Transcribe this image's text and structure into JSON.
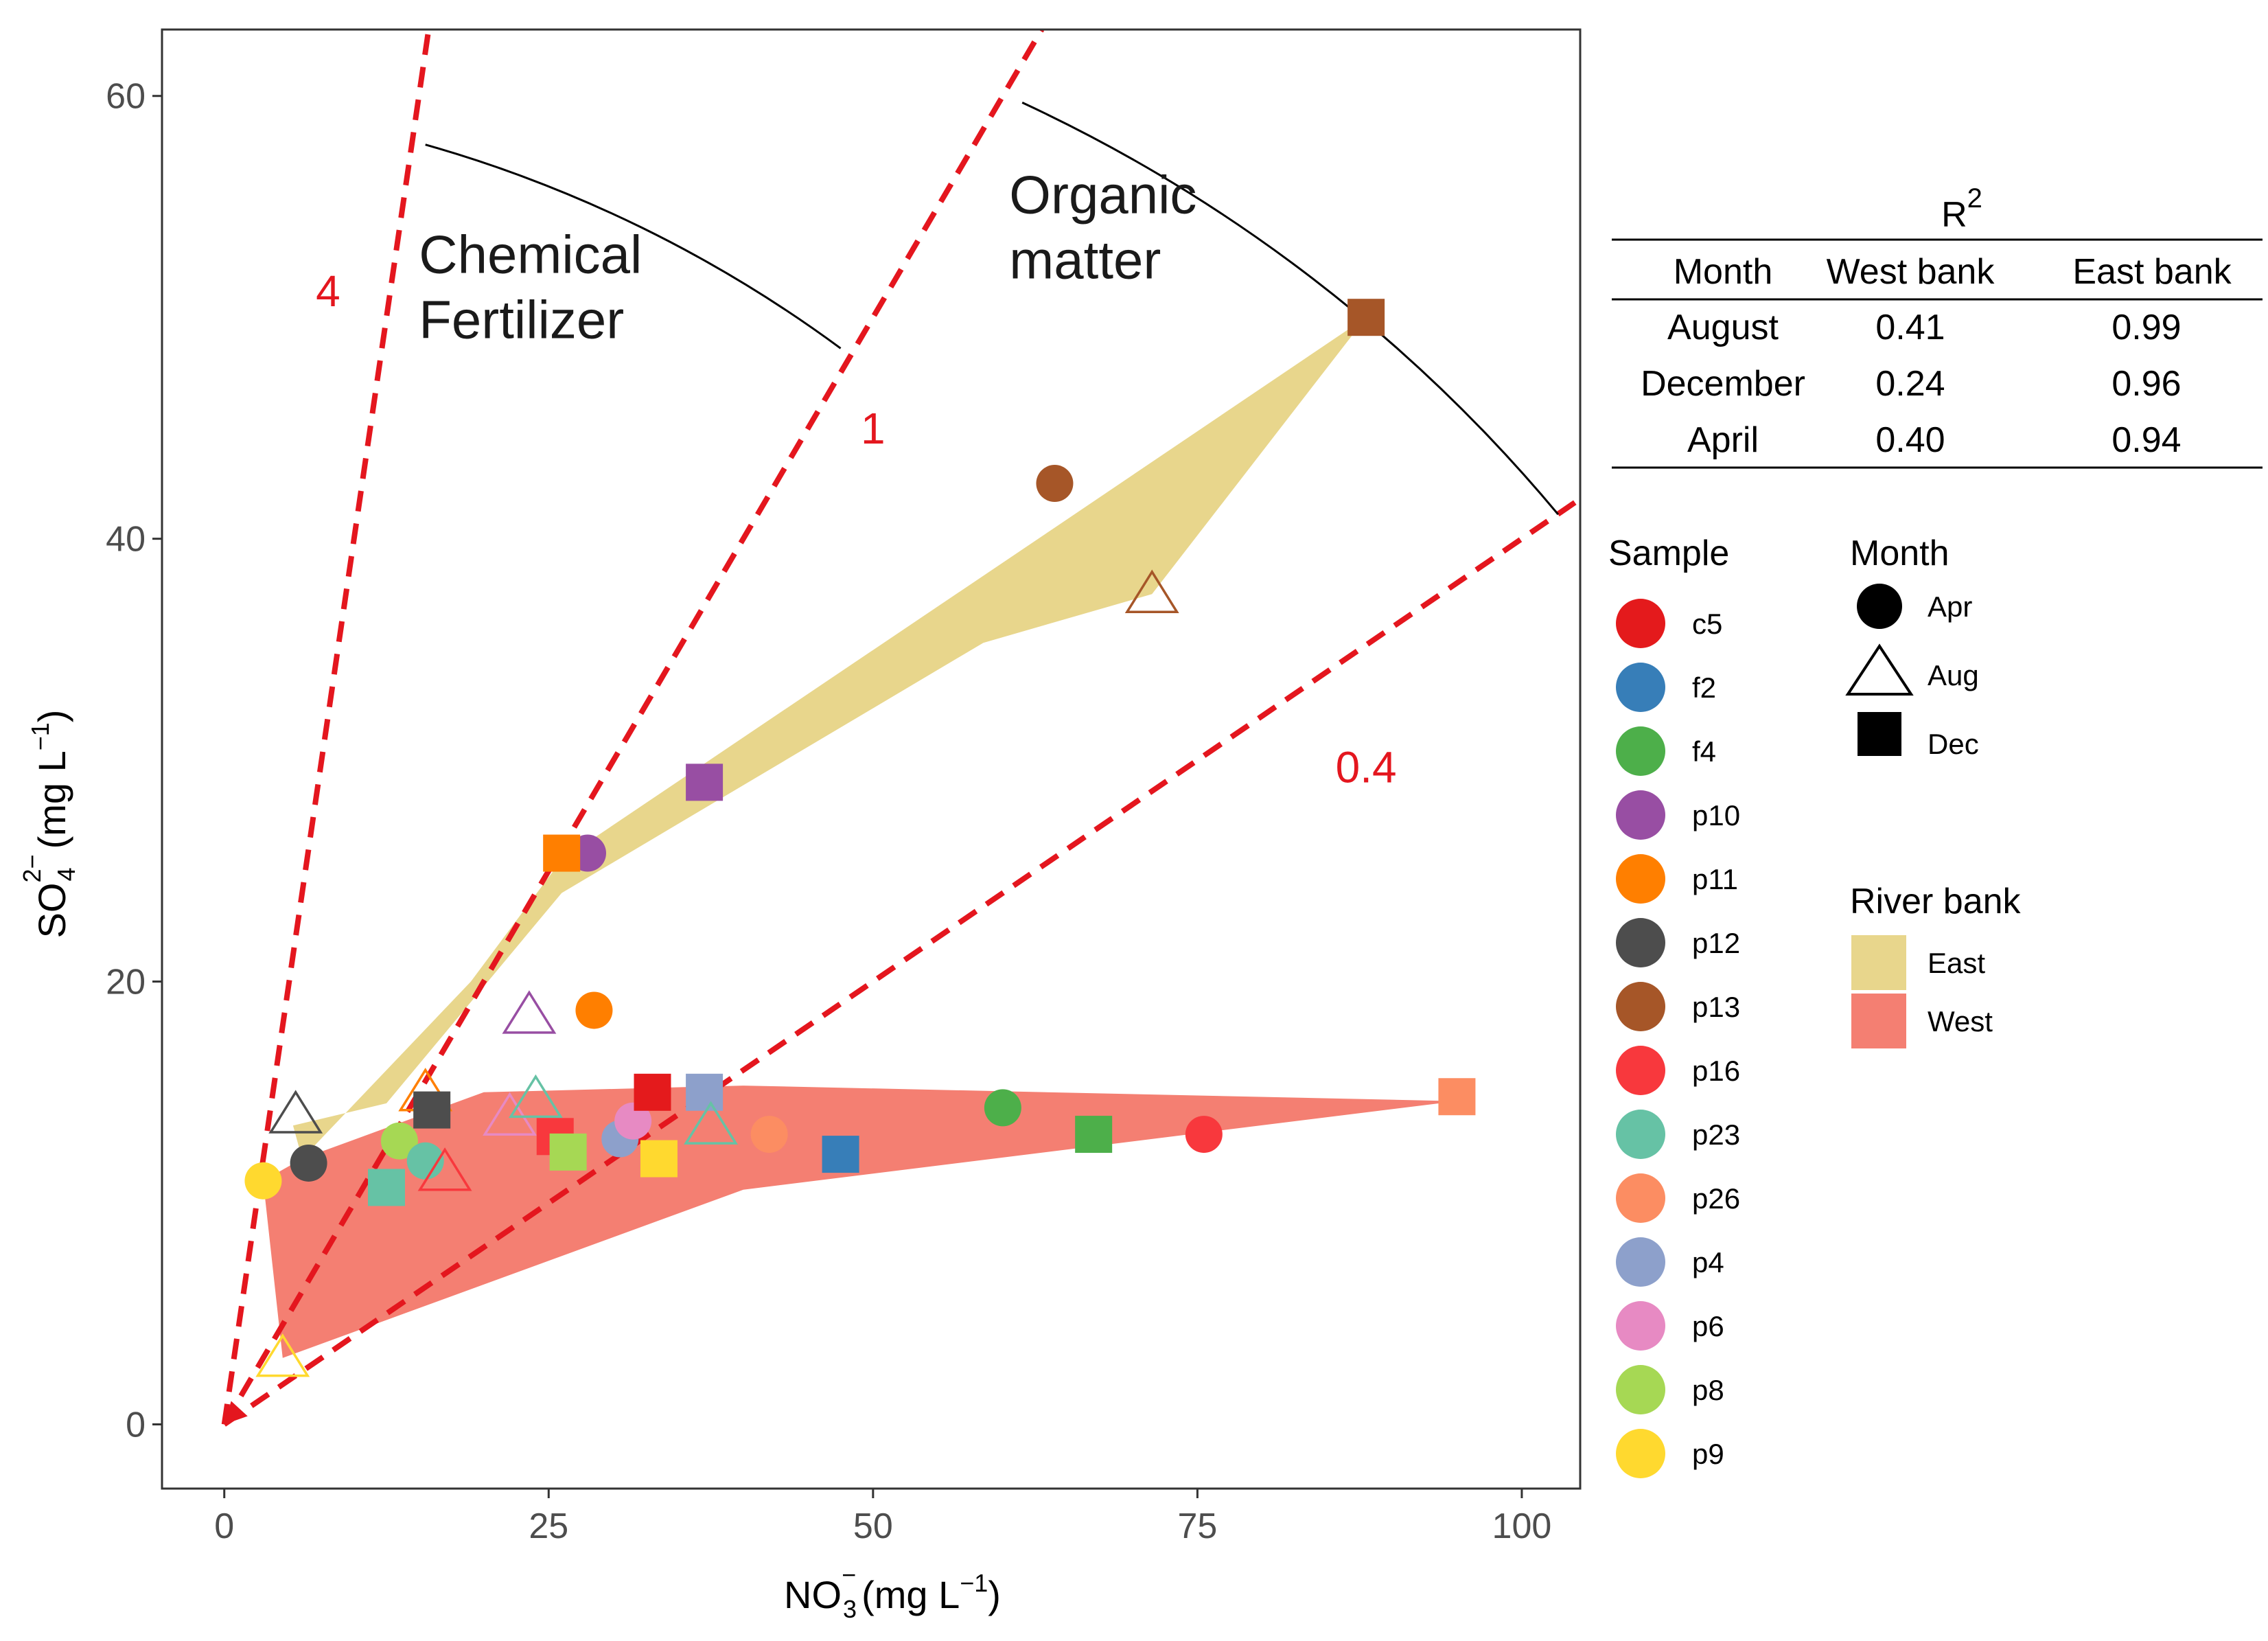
{
  "chart_data": {
    "type": "scatter",
    "xlabel": "NO",
    "xlabel_sub": "3",
    "xlabel_sup": "−",
    "xlabel_units": "(mg  L",
    "ylabel": "SO",
    "ylabel_sub": "4",
    "ylabel_sup": "2−",
    "ylabel_units": "(mg  L",
    "units_sup": "−1",
    "units_close": ")",
    "xlim": [
      -4.8,
      104.5
    ],
    "ylim": [
      -2.9,
      63
    ],
    "xticks": [
      0,
      25,
      50,
      75,
      100
    ],
    "xtick_labels": [
      "0",
      "25",
      "50",
      "75",
      "100"
    ],
    "yticks": [
      0,
      20,
      40,
      60
    ],
    "ytick_labels": [
      "0",
      "20",
      "40",
      "60"
    ],
    "ratio_lines": [
      {
        "label": "4",
        "slope": 4,
        "label_pos": [
          8,
          50.5
        ]
      },
      {
        "label": "1",
        "slope": 1,
        "label_pos": [
          50,
          44.3
        ]
      },
      {
        "label": "0.4",
        "slope": 0.4,
        "label_pos": [
          88,
          29
        ]
      }
    ],
    "annotations": [
      {
        "lines": [
          "Chemical",
          "Fertilizer"
        ],
        "pos": [
          15,
          52
        ]
      },
      {
        "lines": [
          "Organic",
          "matter"
        ],
        "pos": [
          60.5,
          54.7
        ]
      }
    ],
    "arcs": [
      {
        "from": [
          15.5,
          57.8
        ],
        "to": [
          47.5,
          48.6
        ]
      },
      {
        "from": [
          61.5,
          59.7
        ],
        "to": [
          102.8,
          41.1
        ]
      }
    ],
    "regions": [
      {
        "bank": "East",
        "color": "#e8d68c",
        "points": [
          [
            5.3,
            13.5
          ],
          [
            12.5,
            14.5
          ],
          [
            26,
            24
          ],
          [
            58.5,
            35.3
          ],
          [
            71.5,
            37.5
          ],
          [
            88,
            50
          ],
          [
            64,
            40.5
          ],
          [
            26,
            25.5
          ],
          [
            19,
            20
          ],
          [
            6,
            12
          ]
        ]
      },
      {
        "bank": "West",
        "color": "#f47f72",
        "points": [
          [
            3,
            11
          ],
          [
            6,
            12
          ],
          [
            20,
            15
          ],
          [
            40,
            15.3
          ],
          [
            95,
            14.6
          ],
          [
            40,
            10.6
          ],
          [
            4.5,
            3
          ]
        ]
      }
    ],
    "samples": [
      {
        "name": "c5",
        "color": "#e41a1c"
      },
      {
        "name": "f2",
        "color": "#377eb8"
      },
      {
        "name": "f4",
        "color": "#4daf4a"
      },
      {
        "name": "p10",
        "color": "#984ea3"
      },
      {
        "name": "p11",
        "color": "#ff7f00"
      },
      {
        "name": "p12",
        "color": "#4d4d4d"
      },
      {
        "name": "p13",
        "color": "#a65628"
      },
      {
        "name": "p16",
        "color": "#f8383d"
      },
      {
        "name": "p23",
        "color": "#66c2a5"
      },
      {
        "name": "p26",
        "color": "#fc8d62"
      },
      {
        "name": "p4",
        "color": "#8da0cb"
      },
      {
        "name": "p6",
        "color": "#e78ac3"
      },
      {
        "name": "p8",
        "color": "#a6d854"
      },
      {
        "name": "p9",
        "color": "#ffd92f"
      }
    ],
    "points": [
      {
        "sample": "p13",
        "month": "Dec",
        "x": 88,
        "y": 50
      },
      {
        "sample": "p13",
        "month": "Apr",
        "x": 64,
        "y": 42.5
      },
      {
        "sample": "p13",
        "month": "Aug",
        "x": 71.5,
        "y": 37.5
      },
      {
        "sample": "p10",
        "month": "Dec",
        "x": 37,
        "y": 29
      },
      {
        "sample": "p10",
        "month": "Apr",
        "x": 28,
        "y": 25.8
      },
      {
        "sample": "p11",
        "month": "Dec",
        "x": 26,
        "y": 25.8
      },
      {
        "sample": "p11",
        "month": "Apr",
        "x": 28.5,
        "y": 18.7
      },
      {
        "sample": "p10",
        "month": "Aug",
        "x": 23.5,
        "y": 18.5
      },
      {
        "sample": "p11",
        "month": "Aug",
        "x": 15.5,
        "y": 15
      },
      {
        "sample": "p12",
        "month": "Aug",
        "x": 5.5,
        "y": 14
      },
      {
        "sample": "p12",
        "month": "Dec",
        "x": 16,
        "y": 14.2
      },
      {
        "sample": "p12",
        "month": "Apr",
        "x": 6.5,
        "y": 11.8
      },
      {
        "sample": "p9",
        "month": "Apr",
        "x": 3,
        "y": 11
      },
      {
        "sample": "p9",
        "month": "Aug",
        "x": 4.5,
        "y": 3
      },
      {
        "sample": "p8",
        "month": "Apr",
        "x": 13.5,
        "y": 12.8
      },
      {
        "sample": "p23",
        "month": "Dec",
        "x": 12.5,
        "y": 10.7
      },
      {
        "sample": "p23",
        "month": "Apr",
        "x": 15.5,
        "y": 11.9
      },
      {
        "sample": "p16",
        "month": "Aug",
        "x": 17,
        "y": 11.4
      },
      {
        "sample": "p6",
        "month": "Aug",
        "x": 22,
        "y": 13.9
      },
      {
        "sample": "p23",
        "month": "Aug",
        "x": 24,
        "y": 14.7
      },
      {
        "sample": "p16",
        "month": "Dec",
        "x": 25.5,
        "y": 13
      },
      {
        "sample": "p8",
        "month": "Dec",
        "x": 26.5,
        "y": 12.3
      },
      {
        "sample": "p4",
        "month": "Apr",
        "x": 30.5,
        "y": 12.9
      },
      {
        "sample": "p6",
        "month": "Apr",
        "x": 31.5,
        "y": 13.7
      },
      {
        "sample": "c5",
        "month": "Dec",
        "x": 33,
        "y": 15
      },
      {
        "sample": "p9",
        "month": "Dec",
        "x": 33.5,
        "y": 12
      },
      {
        "sample": "p4",
        "month": "Dec",
        "x": 37,
        "y": 15
      },
      {
        "sample": "p23",
        "month": "Aug",
        "x": 37.5,
        "y": 13.5
      },
      {
        "sample": "p26",
        "month": "Apr",
        "x": 42,
        "y": 13.1
      },
      {
        "sample": "f2",
        "month": "Dec",
        "x": 47.5,
        "y": 12.2
      },
      {
        "sample": "f4",
        "month": "Apr",
        "x": 60,
        "y": 14.3
      },
      {
        "sample": "f4",
        "month": "Dec",
        "x": 67,
        "y": 13.1
      },
      {
        "sample": "p16",
        "month": "Apr",
        "x": 75.5,
        "y": 13.1
      },
      {
        "sample": "p26",
        "month": "Dec",
        "x": 95,
        "y": 14.8
      }
    ],
    "legend_sample_title": "Sample",
    "legend_month_title": "Month",
    "legend_months": [
      "Apr",
      "Aug",
      "Dec"
    ],
    "legend_bank_title": "River bank",
    "legend_banks": [
      {
        "name": "East",
        "color": "#e8d68c"
      },
      {
        "name": "West",
        "color": "#f47f72"
      }
    ],
    "r2_table": {
      "title": "R",
      "title_sup": "2",
      "headers": [
        "Month",
        "West bank",
        "East bank"
      ],
      "rows": [
        [
          "August",
          "0.41",
          "0.99"
        ],
        [
          "December",
          "0.24",
          "0.96"
        ],
        [
          "April",
          "0.40",
          "0.94"
        ]
      ]
    }
  }
}
